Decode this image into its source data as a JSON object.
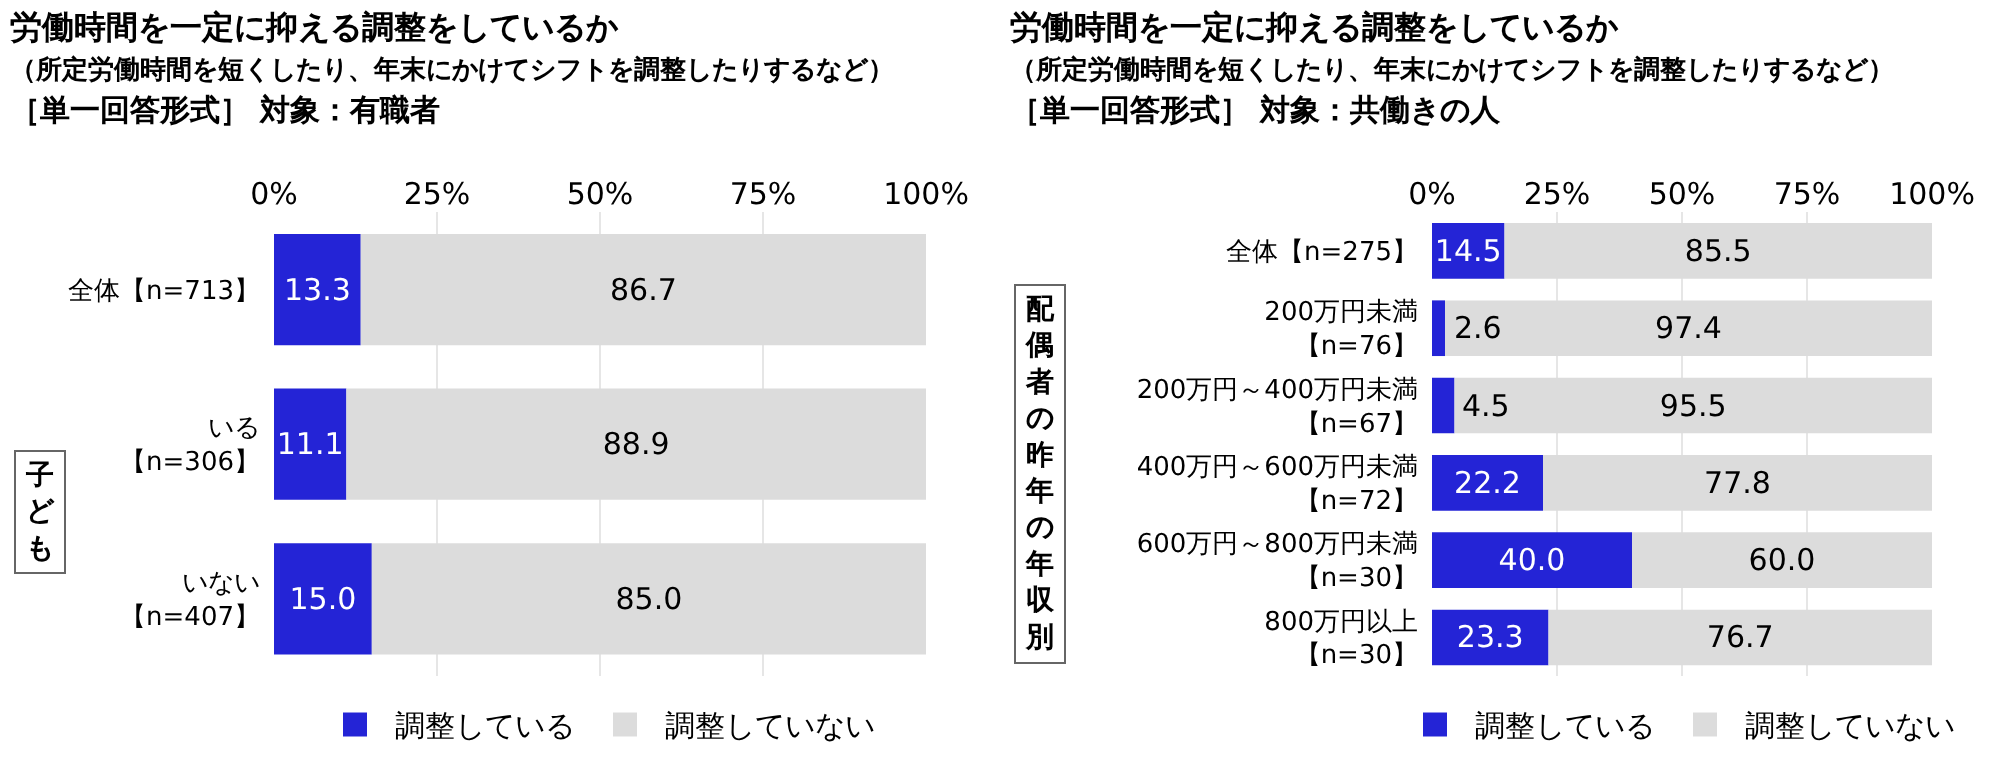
{
  "chart_data": [
    {
      "type": "bar",
      "orientation": "horizontal",
      "stacked": true,
      "title": "労働時間を一定に抑える調整をしているか",
      "subtitle": "（所定労働時間を短くしたり、年末にかけてシフトを調整したりするなど）",
      "annotations": [
        "［単一回答形式］ 対象：有職者",
        "子ども"
      ],
      "categories": [
        "全体【n=713】",
        "いる【n=306】",
        "いない【n=407】"
      ],
      "series": [
        {
          "name": "調整している",
          "color": "#2424d6",
          "values": [
            13.3,
            11.1,
            15.0
          ],
          "value_labels": [
            "13.3",
            "11.1",
            "15.0"
          ]
        },
        {
          "name": "調整していない",
          "color": "#dcdcdc",
          "values": [
            86.7,
            88.9,
            85.0
          ],
          "value_labels": [
            "86.7",
            "88.9",
            "85.0"
          ]
        }
      ],
      "xlim": [
        0,
        100
      ],
      "xticks": [
        {
          "value": 0,
          "label": "0%"
        },
        {
          "value": 25,
          "label": "25%"
        },
        {
          "value": 50,
          "label": "50%"
        },
        {
          "value": 75,
          "label": "75%"
        },
        {
          "value": 100,
          "label": "100%"
        }
      ],
      "grid": "x",
      "legend": "bottom"
    },
    {
      "type": "bar",
      "orientation": "horizontal",
      "stacked": true,
      "title": "労働時間を一定に抑える調整をしているか",
      "subtitle": "（所定労働時間を短くしたり、年末にかけてシフトを調整したりするなど）",
      "annotations": [
        "［単一回答形式］ 対象：共働きの人",
        "配偶者の昨年の年収別"
      ],
      "categories": [
        "全体【n=275】",
        "200万円未満【n=76】",
        "200万円～400万円未満【n=67】",
        "400万円～600万円未満【n=72】",
        "600万円～800万円未満【n=30】",
        "800万円以上【n=30】"
      ],
      "series": [
        {
          "name": "調整している",
          "color": "#2424d6",
          "values": [
            14.5,
            2.6,
            4.5,
            22.2,
            40.0,
            23.3
          ],
          "value_labels": [
            "14.5",
            "2.6",
            "4.5",
            "22.2",
            "40.0",
            "23.3"
          ]
        },
        {
          "name": "調整していない",
          "color": "#dcdcdc",
          "values": [
            85.5,
            97.4,
            95.5,
            77.8,
            60.0,
            76.7
          ],
          "value_labels": [
            "85.5",
            "97.4",
            "95.5",
            "77.8",
            "60.0",
            "76.7"
          ]
        }
      ],
      "xlim": [
        0,
        100
      ],
      "xticks": [
        {
          "value": 0,
          "label": "0%"
        },
        {
          "value": 25,
          "label": "25%"
        },
        {
          "value": 50,
          "label": "50%"
        },
        {
          "value": 75,
          "label": "75%"
        },
        {
          "value": 100,
          "label": "100%"
        }
      ],
      "grid": "x",
      "legend": "bottom"
    }
  ]
}
